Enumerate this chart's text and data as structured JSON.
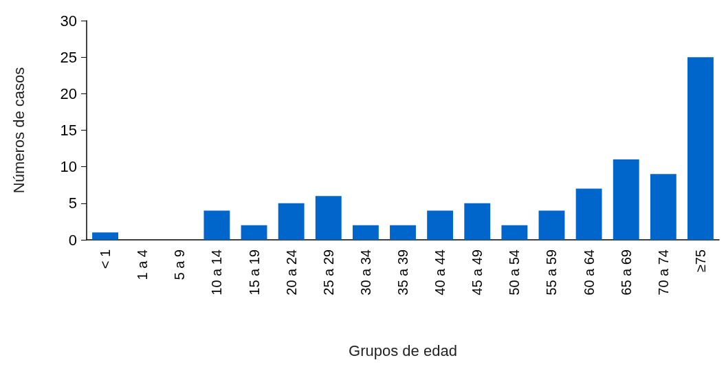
{
  "chart_data": {
    "type": "bar",
    "xlabel": "Grupos de edad",
    "ylabel": "Números de casos",
    "categories": [
      "< 1",
      "1 a 4",
      "5 a 9",
      "10 a 14",
      "15 a 19",
      "20 a 24",
      "25 a 29",
      "30 a 34",
      "35 a 39",
      "40 a 44",
      "45 a 49",
      "50 a 54",
      "55 a 59",
      "60 a 64",
      "65 a 69",
      "70 a 74",
      "≥75"
    ],
    "values": [
      1,
      0,
      0,
      4,
      2,
      5,
      6,
      2,
      2,
      4,
      5,
      2,
      4,
      7,
      11,
      9,
      25
    ],
    "color": "#0066cc",
    "ylim": [
      0,
      30
    ],
    "yticks": [
      0,
      5,
      10,
      15,
      20,
      25,
      30
    ],
    "grid": false
  }
}
